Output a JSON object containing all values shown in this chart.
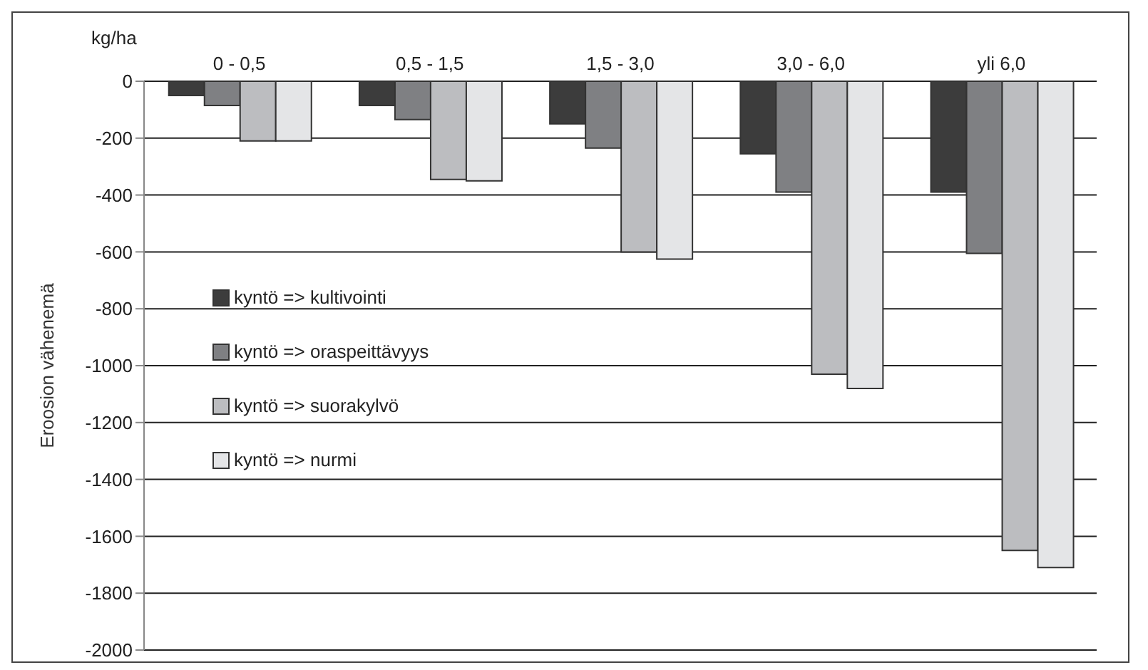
{
  "chart_data": {
    "type": "bar",
    "ylabel": "Eroosion vähenemä",
    "annotations": [
      "kg/ha"
    ],
    "categories": [
      "0 - 0,5",
      "0,5 - 1,5",
      "1,5 - 3,0",
      "3,0 - 6,0",
      "yli 6,0"
    ],
    "series": [
      {
        "name": "kyntö => kultivointi",
        "color": "#3c3c3c",
        "values": [
          -50,
          -85,
          -150,
          -255,
          -390
        ]
      },
      {
        "name": "kyntö => oraspeittävyys",
        "color": "#7f8083",
        "values": [
          -85,
          -135,
          -235,
          -390,
          -605
        ]
      },
      {
        "name": "kyntö => suorakylvö",
        "color": "#bcbdc0",
        "values": [
          -210,
          -345,
          -600,
          -1030,
          -1650
        ]
      },
      {
        "name": "kyntö => nurmi",
        "color": "#e4e5e7",
        "values": [
          -210,
          -350,
          -625,
          -1080,
          -1710
        ]
      }
    ],
    "ylim": [
      -2000,
      0
    ],
    "yticks": [
      0,
      -200,
      -400,
      -600,
      -800,
      -1000,
      -1200,
      -1400,
      -1600,
      -1800,
      -2000
    ],
    "grid": "y",
    "legend": "left"
  }
}
